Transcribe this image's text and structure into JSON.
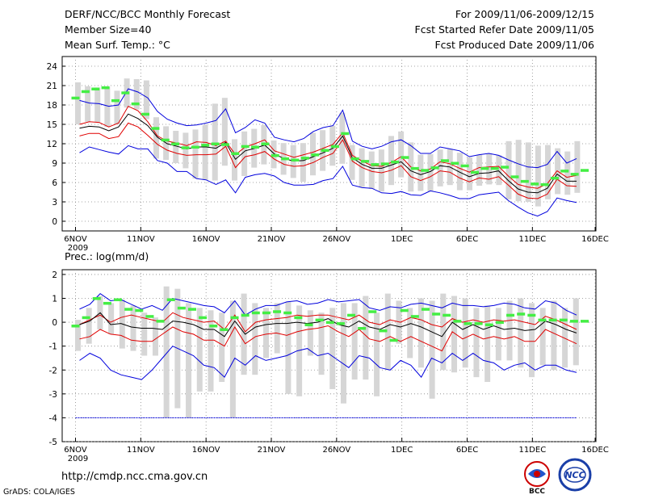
{
  "header": {
    "title": "DERF/NCC/BCC Monthly Forecast",
    "member_size": "Member Size=40",
    "variable": "Mean Surf. Temp.: °C",
    "period": "For 2009/11/06-2009/12/15",
    "started": "Fcst Started Refer Date 2009/11/05",
    "produced": "Fcst Produced Date 2009/11/06"
  },
  "footer": {
    "url": "http://cmdp.ncc.cma.gov.cn",
    "credit": "GrADS: COLA/IGES",
    "logo1_text": "BCC",
    "logo2_text": "NCC"
  },
  "colors": {
    "median": "#000000",
    "inner": "#e00000",
    "outer": "#0000dd",
    "box": "#d6d6d6",
    "obs": "#44ee44",
    "dashed": "#0000dd"
  },
  "chart_data": [
    {
      "type": "line",
      "title": "Mean Surf. Temp.: °C",
      "x_tick_labels": [
        "6NOV",
        "11NOV",
        "16NOV",
        "21NOV",
        "26NOV",
        "1DEC",
        "6DEC",
        "11DEC",
        "16DEC"
      ],
      "x_sub_label": "2009",
      "y_ticks": [
        "0",
        "3",
        "6",
        "9",
        "12",
        "15",
        "18",
        "21",
        "24"
      ],
      "ylim": [
        -1.5,
        25.5
      ],
      "days": 40,
      "series": [
        {
          "name": "max",
          "values": [
            18.7,
            18.3,
            18.2,
            17.8,
            18.0,
            20.5,
            20.0,
            19.1,
            17.0,
            15.8,
            15.2,
            14.8,
            14.9,
            15.2,
            15.6,
            17.4,
            13.7,
            14.5,
            15.7,
            15.2,
            13.0,
            12.6,
            12.3,
            12.8,
            13.9,
            14.5,
            14.8,
            17.2,
            12.4,
            11.6,
            11.2,
            11.6,
            12.3,
            12.6,
            11.7,
            10.5,
            10.5,
            11.5,
            11.2,
            10.9,
            10.0,
            10.3,
            10.5,
            10.2,
            9.5,
            8.9,
            8.4,
            8.3,
            8.8,
            10.8,
            9.0,
            9.7
          ]
        },
        {
          "name": "p75",
          "values": [
            15.0,
            15.4,
            15.3,
            14.6,
            15.2,
            17.8,
            17.1,
            15.4,
            13.2,
            12.4,
            12.1,
            11.7,
            12.3,
            12.2,
            11.7,
            12.4,
            10.3,
            11.5,
            12.0,
            12.6,
            10.9,
            10.4,
            9.9,
            10.3,
            10.7,
            11.3,
            11.9,
            13.7,
            10.2,
            9.3,
            8.6,
            8.5,
            9.1,
            10.0,
            8.4,
            7.8,
            8.1,
            9.2,
            8.9,
            8.2,
            7.6,
            8.3,
            8.4,
            8.5,
            7.0,
            5.7,
            5.3,
            5.1,
            5.8,
            7.8,
            6.8,
            7.1
          ]
        },
        {
          "name": "median",
          "values": [
            14.4,
            14.7,
            14.6,
            14.0,
            14.6,
            16.6,
            15.9,
            14.8,
            13.0,
            12.0,
            11.6,
            11.2,
            11.5,
            11.5,
            11.3,
            12.2,
            9.6,
            10.9,
            11.3,
            11.8,
            10.4,
            9.7,
            9.3,
            9.4,
            10.0,
            10.6,
            11.3,
            13.2,
            9.8,
            8.8,
            8.2,
            8.2,
            8.7,
            9.2,
            7.8,
            7.2,
            7.7,
            8.6,
            8.4,
            7.6,
            6.9,
            7.4,
            7.5,
            7.8,
            6.3,
            5.0,
            4.5,
            4.4,
            5.1,
            7.3,
            6.2,
            6.2
          ]
        },
        {
          "name": "p25",
          "values": [
            13.2,
            13.6,
            13.6,
            12.8,
            13.1,
            15.2,
            14.6,
            13.3,
            11.9,
            11.0,
            10.5,
            10.2,
            10.3,
            10.3,
            10.4,
            11.6,
            8.3,
            10.0,
            10.3,
            10.8,
            9.6,
            8.8,
            8.5,
            8.6,
            9.1,
            9.9,
            10.5,
            12.6,
            9.3,
            8.3,
            7.7,
            7.5,
            7.9,
            8.6,
            6.9,
            6.3,
            6.9,
            7.8,
            7.6,
            6.7,
            6.1,
            6.7,
            6.5,
            6.9,
            5.6,
            4.2,
            3.6,
            3.5,
            4.2,
            6.5,
            5.5,
            5.4
          ]
        },
        {
          "name": "min",
          "values": [
            10.6,
            11.5,
            11.1,
            10.7,
            10.4,
            11.7,
            11.2,
            11.2,
            9.4,
            9.0,
            7.7,
            7.7,
            6.6,
            6.4,
            5.7,
            6.4,
            4.4,
            6.8,
            7.2,
            7.4,
            7.0,
            6.0,
            5.6,
            5.6,
            5.7,
            6.3,
            6.6,
            8.5,
            5.6,
            5.2,
            5.1,
            4.4,
            4.3,
            4.6,
            4.1,
            4.0,
            4.7,
            4.4,
            4.0,
            3.5,
            3.5,
            4.1,
            4.3,
            4.5,
            3.2,
            2.2,
            1.3,
            0.8,
            1.5,
            3.6,
            3.2,
            2.9
          ]
        },
        {
          "name": "observed",
          "values": [
            19.1,
            20.1,
            20.5,
            20.7,
            18.7,
            19.9,
            18.2,
            16.6,
            14.4,
            12.6,
            12.0,
            11.4,
            11.5,
            11.8,
            12.0,
            11.9,
            10.5,
            11.6,
            11.5,
            12.0,
            10.2,
            9.7,
            9.5,
            9.8,
            10.3,
            11.0,
            11.6,
            13.6,
            9.7,
            9.3,
            8.8,
            8.9,
            9.2,
            9.9,
            8.2,
            7.9,
            8.3,
            9.4,
            9.0,
            8.6,
            7.6,
            8.2,
            8.2,
            8.4,
            6.9,
            6.2,
            5.8,
            5.7,
            6.7,
            7.8,
            7.3,
            7.9
          ]
        },
        {
          "name": "box_top",
          "values": [
            21.5,
            20.9,
            20.7,
            20.8,
            20.2,
            22.1,
            22.0,
            21.8,
            16.1,
            14.7,
            14.0,
            13.7,
            14.2,
            14.9,
            18.2,
            19.1,
            12.7,
            13.9,
            14.3,
            14.9,
            12.5,
            12.1,
            11.8,
            12.1,
            13.7,
            14.1,
            14.8,
            16.8,
            11.8,
            11.3,
            10.8,
            11.1,
            13.2,
            13.9,
            12.2,
            10.3,
            10.4,
            11.1,
            11.2,
            10.6,
            9.9,
            10.3,
            10.5,
            10.2,
            12.4,
            12.6,
            12.2,
            11.7,
            11.8,
            11.3,
            10.8,
            12.4
          ]
        },
        {
          "name": "box_bottom",
          "values": [
            15.0,
            15.4,
            15.3,
            14.6,
            15.0,
            17.6,
            17.3,
            15.8,
            9.7,
            9.5,
            9.0,
            8.2,
            6.6,
            6.4,
            6.3,
            8.6,
            6.3,
            7.0,
            8.3,
            8.8,
            8.2,
            7.2,
            6.7,
            6.1,
            7.1,
            7.8,
            8.6,
            8.9,
            6.4,
            5.3,
            5.0,
            4.6,
            5.6,
            6.8,
            4.6,
            4.7,
            4.6,
            5.4,
            5.6,
            4.8,
            4.8,
            5.5,
            5.7,
            5.6,
            3.4,
            3.1,
            3.0,
            2.3,
            3.4,
            4.2,
            4.1,
            4.4
          ]
        }
      ]
    },
    {
      "type": "line",
      "title": "Prec.: log(mm/d)",
      "x_tick_labels": [
        "6NOV",
        "11NOV",
        "16NOV",
        "21NOV",
        "26NOV",
        "1DEC",
        "6DEC",
        "11DEC",
        "16DEC"
      ],
      "x_sub_label": "2009",
      "y_ticks": [
        "-5",
        "-4",
        "-3",
        "-2",
        "-1",
        "0",
        "1",
        "2"
      ],
      "ylim": [
        -5,
        2.2
      ],
      "days": 40,
      "series": [
        {
          "name": "max",
          "values": [
            0.55,
            0.75,
            1.2,
            0.9,
            0.95,
            0.75,
            0.55,
            0.7,
            0.5,
            1.0,
            0.9,
            0.8,
            0.7,
            0.65,
            0.4,
            0.9,
            0.3,
            0.55,
            0.7,
            0.7,
            0.85,
            0.9,
            0.75,
            0.8,
            0.95,
            0.85,
            0.9,
            0.95,
            0.6,
            0.5,
            0.65,
            0.6,
            0.75,
            0.8,
            0.7,
            0.6,
            0.8,
            0.7,
            0.7,
            0.65,
            0.7,
            0.8,
            0.75,
            0.6,
            0.55,
            0.9,
            0.8,
            0.5,
            0.3
          ]
        },
        {
          "name": "p75",
          "values": [
            -0.1,
            0.1,
            0.3,
            0.0,
            0.2,
            0.3,
            0.2,
            0.1,
            0.0,
            0.4,
            0.2,
            0.1,
            0.0,
            0.05,
            -0.3,
            0.3,
            -0.4,
            0.0,
            0.1,
            0.15,
            0.2,
            0.3,
            0.25,
            0.3,
            0.3,
            0.2,
            0.1,
            0.3,
            0.0,
            -0.1,
            0.1,
            0.0,
            0.2,
            0.1,
            -0.1,
            -0.2,
            0.15,
            0.0,
            0.1,
            0.0,
            0.1,
            0.05,
            0.1,
            0.0,
            -0.1,
            0.25,
            0.1,
            -0.1,
            -0.3
          ]
        },
        {
          "name": "median",
          "values": [
            -0.1,
            0.05,
            0.4,
            -0.1,
            -0.05,
            -0.2,
            -0.25,
            -0.25,
            -0.3,
            0.05,
            0.0,
            -0.1,
            -0.3,
            -0.3,
            -0.6,
            0.05,
            -0.5,
            -0.2,
            -0.1,
            -0.05,
            -0.05,
            0.0,
            -0.05,
            0.0,
            0.15,
            -0.1,
            -0.2,
            0.05,
            -0.2,
            -0.3,
            -0.1,
            -0.2,
            -0.05,
            -0.2,
            -0.4,
            -0.6,
            0.0,
            -0.3,
            -0.1,
            -0.3,
            -0.15,
            -0.3,
            -0.25,
            -0.35,
            -0.3,
            0.05,
            -0.1,
            -0.3,
            -0.45
          ]
        },
        {
          "name": "p25",
          "values": [
            -0.7,
            -0.6,
            -0.3,
            -0.5,
            -0.55,
            -0.75,
            -0.8,
            -0.8,
            -0.5,
            -0.2,
            -0.4,
            -0.5,
            -0.75,
            -0.75,
            -1.0,
            -0.2,
            -0.9,
            -0.6,
            -0.5,
            -0.45,
            -0.55,
            -0.4,
            -0.3,
            -0.25,
            -0.15,
            -0.4,
            -0.6,
            -0.3,
            -0.7,
            -0.8,
            -0.6,
            -0.8,
            -0.6,
            -0.8,
            -1.0,
            -1.2,
            -0.4,
            -0.7,
            -0.5,
            -0.7,
            -0.6,
            -0.7,
            -0.6,
            -0.8,
            -0.8,
            -0.3,
            -0.5,
            -0.7,
            -0.9
          ]
        },
        {
          "name": "min",
          "values": [
            -1.6,
            -1.3,
            -1.5,
            -2.0,
            -2.2,
            -2.3,
            -2.4,
            -2.0,
            -1.5,
            -1.0,
            -1.2,
            -1.4,
            -1.8,
            -1.9,
            -2.3,
            -1.5,
            -1.8,
            -1.4,
            -1.6,
            -1.5,
            -1.4,
            -1.2,
            -1.1,
            -1.4,
            -1.3,
            -1.6,
            -1.9,
            -1.4,
            -1.5,
            -1.9,
            -2.0,
            -1.6,
            -1.8,
            -2.3,
            -1.5,
            -1.7,
            -1.3,
            -1.6,
            -1.3,
            -1.6,
            -1.7,
            -2.0,
            -1.8,
            -1.7,
            -2.0,
            -1.8,
            -1.8,
            -2.0,
            -2.1
          ]
        },
        {
          "name": "observed",
          "values": [
            -0.15,
            0.2,
            1.0,
            0.8,
            0.95,
            0.55,
            0.5,
            0.25,
            0.05,
            0.95,
            0.6,
            0.55,
            0.2,
            -0.15,
            -0.3,
            0.2,
            0.3,
            0.4,
            0.4,
            0.45,
            0.4,
            0.2,
            -0.1,
            0.1,
            0.0,
            -0.05,
            0.3,
            -0.25,
            0.45,
            -0.35,
            -0.75,
            0.5,
            0.25,
            0.55,
            0.35,
            0.3,
            0.05,
            -0.05,
            -0.05,
            -0.1,
            0.0,
            0.3,
            0.35,
            0.3,
            0.1,
            0.1,
            0.1,
            0.05,
            0.05
          ]
        },
        {
          "name": "box_top",
          "values": [
            0.1,
            0.6,
            1.1,
            0.8,
            0.95,
            0.7,
            0.4,
            0.2,
            1.5,
            1.4,
            0.8,
            0.6,
            0.5,
            0.4,
            0.9,
            1.2,
            0.8,
            0.6,
            0.8,
            0.85,
            0.7,
            0.5,
            0.4,
            0.6,
            0.8,
            0.8,
            1.1,
            0.4,
            1.2,
            0.9,
            0.6,
            1.0,
            0.9,
            1.2,
            1.1,
            1.0,
            0.6,
            0.7,
            0.6,
            0.9,
            1.0,
            0.8,
            0.6,
            0.9,
            0.6,
            1.0
          ]
        },
        {
          "name": "box_bottom",
          "values": [
            -1.2,
            -0.9,
            -0.3,
            -0.5,
            -1.1,
            -1.2,
            -1.4,
            -1.4,
            -4.0,
            -3.6,
            -4.0,
            -2.9,
            -2.9,
            -2.5,
            -4.0,
            -2.2,
            -2.2,
            -1.5,
            -1.3,
            -3.0,
            -3.1,
            -1.4,
            -2.2,
            -2.8,
            -3.4,
            -2.4,
            -2.4,
            -3.1,
            -2.0,
            -0.9,
            -1.5,
            -1.9,
            -3.2,
            -2.0,
            -2.1,
            -1.9,
            -2.3,
            -2.5,
            -1.6,
            -1.6,
            -1.9,
            -2.3,
            -1.8,
            -2.0,
            -1.9,
            -1.8
          ]
        },
        {
          "name": "baseline",
          "values": [
            -4.0,
            -4.0
          ]
        }
      ]
    }
  ]
}
